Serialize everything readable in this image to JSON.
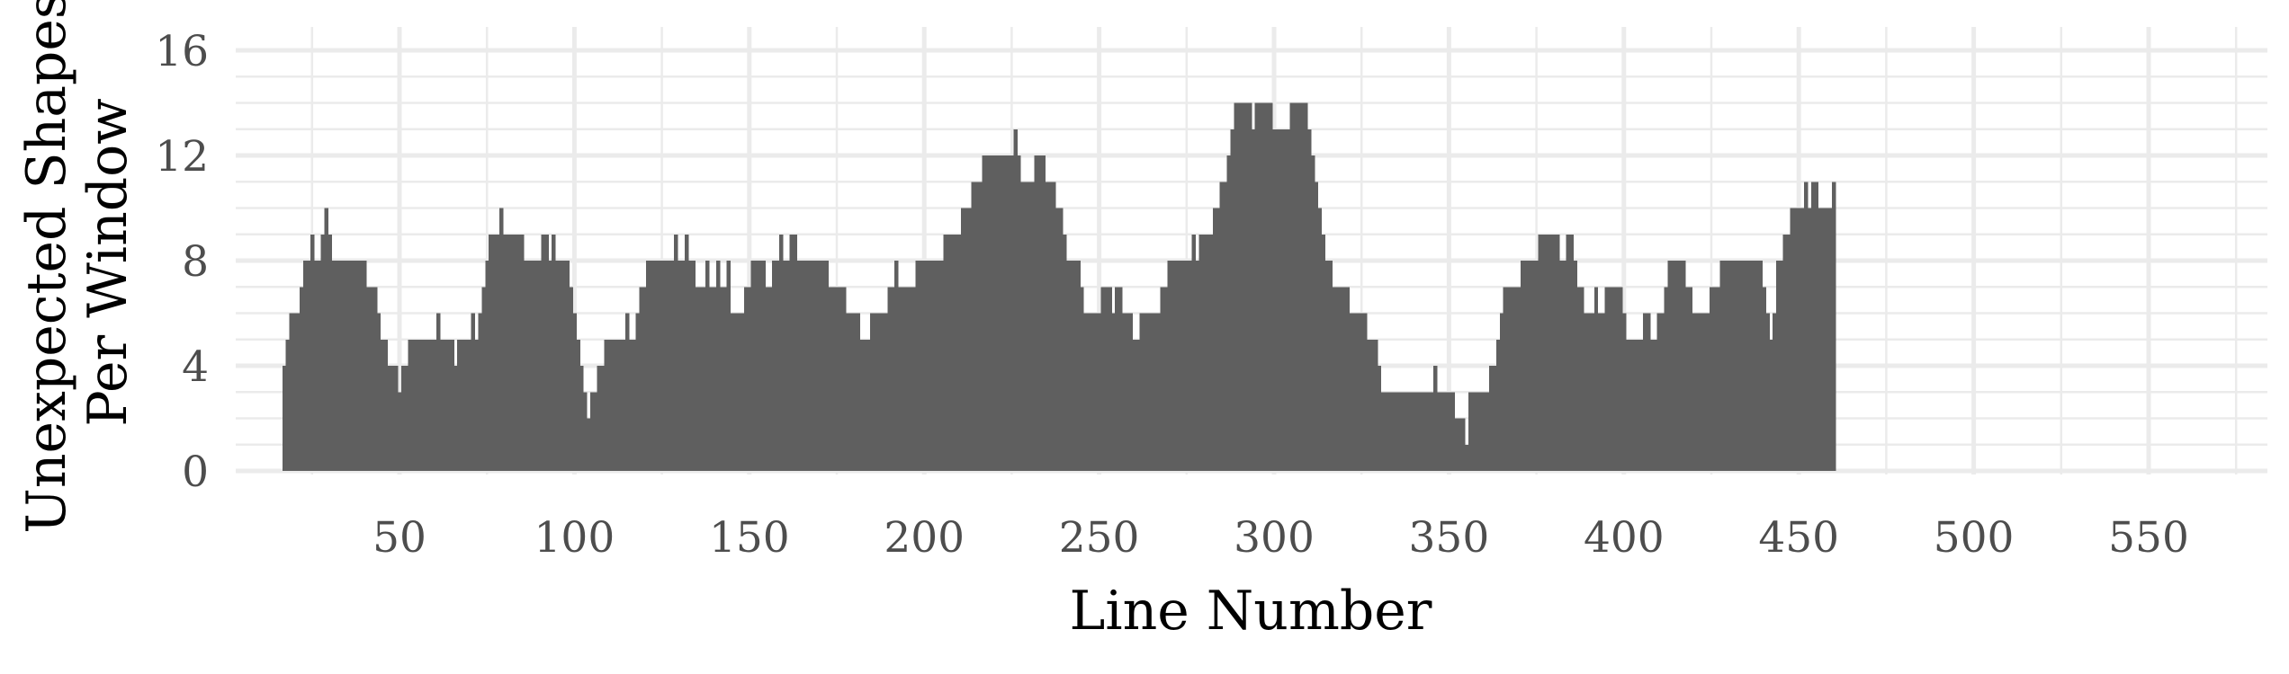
{
  "chart_data": {
    "type": "bar",
    "style": "histogram-like step bars, one bar per line",
    "xlabel": "Line Number",
    "ylabel_lines": [
      "Unexpected Shapes",
      "Per Window"
    ],
    "xlim": [
      0,
      580
    ],
    "ylim": [
      0,
      16
    ],
    "x_ticks": [
      50,
      100,
      150,
      200,
      250,
      300,
      350,
      400,
      450,
      500,
      550
    ],
    "y_ticks": [
      0,
      4,
      8,
      12,
      16
    ],
    "x_tick_labels": [
      "50",
      "100",
      "150",
      "200",
      "250",
      "300",
      "350",
      "400",
      "450",
      "500",
      "550"
    ],
    "y_tick_labels": [
      "0",
      "4",
      "8",
      "12",
      "16"
    ],
    "grid": true,
    "bar_color": "#5f5f5f",
    "x_start": 17,
    "values": [
      4,
      5,
      6,
      6,
      6,
      7,
      8,
      8,
      9,
      8,
      8,
      9,
      10,
      9,
      8,
      8,
      8,
      8,
      8,
      8,
      8,
      8,
      8,
      8,
      7,
      7,
      7,
      6,
      5,
      5,
      4,
      4,
      4,
      3,
      4,
      4,
      5,
      5,
      5,
      5,
      5,
      5,
      5,
      5,
      6,
      5,
      5,
      5,
      5,
      4,
      5,
      5,
      5,
      5,
      6,
      5,
      6,
      7,
      8,
      9,
      9,
      9,
      10,
      9,
      9,
      9,
      9,
      9,
      9,
      8,
      8,
      8,
      8,
      8,
      9,
      9,
      8,
      9,
      8,
      8,
      8,
      8,
      7,
      6,
      5,
      4,
      3,
      2,
      3,
      3,
      4,
      4,
      5,
      5,
      5,
      5,
      5,
      5,
      6,
      5,
      5,
      6,
      7,
      7,
      8,
      8,
      8,
      8,
      8,
      8,
      8,
      8,
      9,
      8,
      8,
      9,
      8,
      8,
      7,
      7,
      7,
      8,
      7,
      7,
      8,
      7,
      7,
      8,
      6,
      6,
      6,
      6,
      7,
      7,
      8,
      8,
      8,
      8,
      7,
      7,
      8,
      8,
      9,
      8,
      8,
      9,
      9,
      8,
      8,
      8,
      8,
      8,
      8,
      8,
      8,
      8,
      7,
      7,
      7,
      7,
      7,
      6,
      6,
      6,
      6,
      5,
      5,
      5,
      6,
      6,
      6,
      6,
      6,
      7,
      7,
      8,
      7,
      7,
      7,
      7,
      7,
      8,
      8,
      8,
      8,
      8,
      8,
      8,
      8,
      9,
      9,
      9,
      9,
      9,
      10,
      10,
      10,
      11,
      11,
      11,
      12,
      12,
      12,
      12,
      12,
      12,
      12,
      12,
      12,
      13,
      12,
      11,
      11,
      11,
      11,
      12,
      12,
      12,
      11,
      11,
      11,
      10,
      10,
      9,
      8,
      8,
      8,
      8,
      7,
      6,
      6,
      6,
      6,
      6,
      7,
      7,
      7,
      6,
      7,
      7,
      6,
      6,
      6,
      5,
      5,
      6,
      6,
      6,
      6,
      6,
      6,
      7,
      7,
      8,
      8,
      8,
      8,
      8,
      8,
      8,
      9,
      8,
      9,
      9,
      9,
      9,
      10,
      10,
      11,
      11,
      12,
      13,
      14,
      14,
      14,
      14,
      14,
      13,
      14,
      14,
      14,
      14,
      14,
      13,
      13,
      13,
      13,
      13,
      14,
      14,
      14,
      14,
      14,
      13,
      12,
      11,
      10,
      9,
      8,
      8,
      7,
      7,
      7,
      7,
      7,
      6,
      6,
      6,
      6,
      6,
      5,
      5,
      5,
      4,
      3,
      3,
      3,
      3,
      3,
      3,
      3,
      3,
      3,
      3,
      3,
      3,
      3,
      3,
      3,
      4,
      3,
      3,
      3,
      3,
      3,
      2,
      2,
      2,
      1,
      3,
      3,
      3,
      3,
      3,
      3,
      4,
      4,
      5,
      6,
      7,
      7,
      7,
      7,
      7,
      8,
      8,
      8,
      8,
      8,
      9,
      9,
      9,
      9,
      9,
      9,
      8,
      8,
      9,
      9,
      8,
      7,
      7,
      6,
      6,
      6,
      7,
      6,
      6,
      7,
      7,
      7,
      7,
      7,
      6,
      5,
      5,
      5,
      5,
      5,
      6,
      6,
      5,
      5,
      6,
      6,
      7,
      8,
      8,
      8,
      8,
      8,
      7,
      7,
      6,
      6,
      6,
      6,
      6,
      7,
      7,
      7,
      8,
      8,
      8,
      8,
      8,
      8,
      8,
      8,
      8,
      8,
      8,
      8,
      7,
      6,
      5,
      6,
      8,
      8,
      9,
      9,
      10,
      10,
      10,
      10,
      11,
      10,
      11,
      11,
      10,
      10,
      10,
      10,
      11
    ]
  }
}
